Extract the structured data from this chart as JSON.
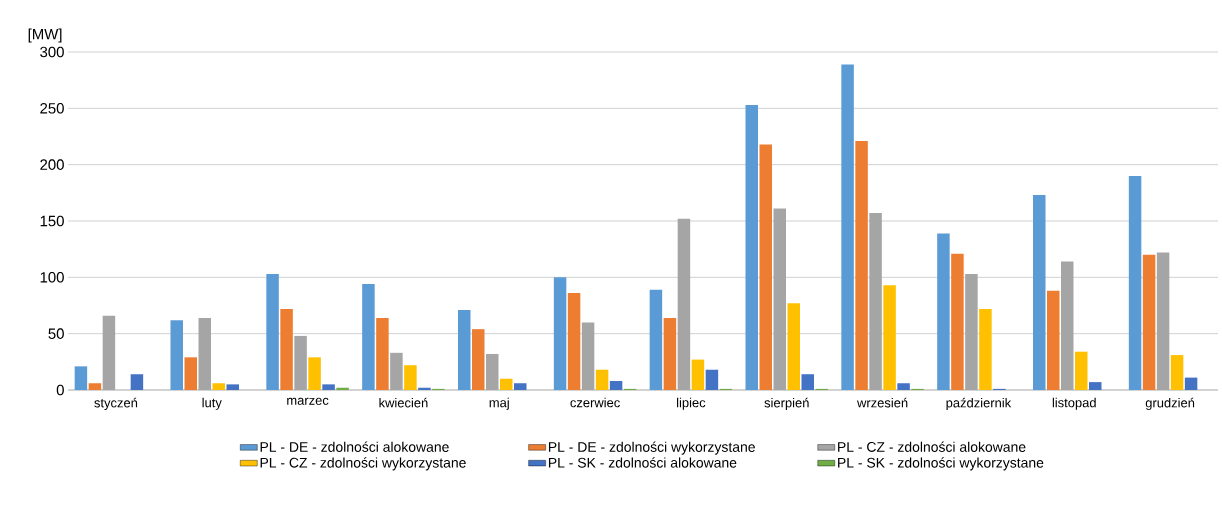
{
  "chart_data": {
    "type": "bar",
    "ylabel": "[MW]",
    "categories": [
      "styczeń",
      "luty",
      "marzec",
      "kwiecień",
      "maj",
      "czerwiec",
      "lipiec",
      "sierpień",
      "wrzesień",
      "październik",
      "listopad",
      "grudzień"
    ],
    "series": [
      {
        "name": "PL - DE - zdolności alokowane",
        "color": "#5b9bd5",
        "values": [
          21,
          62,
          103,
          94,
          71,
          100,
          89,
          253,
          289,
          139,
          173,
          190
        ]
      },
      {
        "name": "PL - DE - zdolności wykorzystane",
        "color": "#ed7d31",
        "values": [
          6,
          29,
          72,
          64,
          54,
          86,
          64,
          218,
          221,
          121,
          88,
          120
        ]
      },
      {
        "name": "PL - CZ - zdolności alokowane",
        "color": "#a5a5a5",
        "values": [
          66,
          64,
          48,
          33,
          32,
          60,
          152,
          161,
          157,
          103,
          114,
          122
        ]
      },
      {
        "name": "PL - CZ - zdolności wykorzystane",
        "color": "#ffc000",
        "values": [
          0,
          6,
          29,
          22,
          10,
          18,
          27,
          77,
          93,
          72,
          34,
          31
        ]
      },
      {
        "name": "PL - SK - zdolności alokowane",
        "color": "#4472c4",
        "values": [
          14,
          5,
          5,
          2,
          6,
          8,
          18,
          14,
          6,
          1,
          7,
          11
        ]
      },
      {
        "name": "PL - SK - zdolności wykorzystane",
        "color": "#70ad47",
        "values": [
          0,
          0,
          2,
          1,
          0,
          1,
          1,
          1,
          1,
          0,
          0,
          0
        ]
      }
    ],
    "ylim": [
      0,
      300
    ],
    "yticks": [
      0,
      50,
      100,
      150,
      200,
      250,
      300
    ],
    "grid": "y",
    "legend": "bottom"
  }
}
